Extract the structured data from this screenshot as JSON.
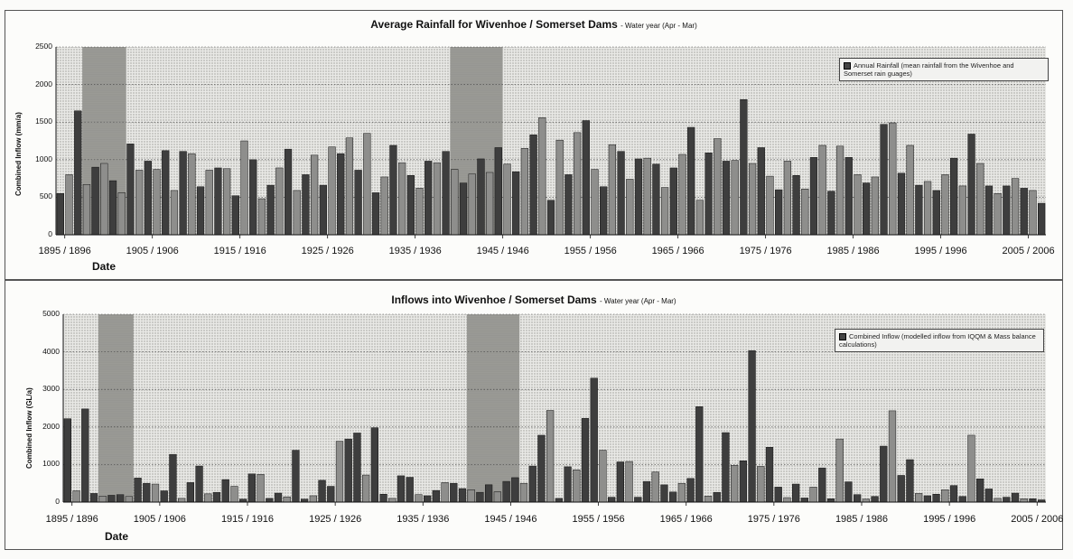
{
  "chart_data": [
    {
      "type": "bar",
      "title": "Average Rainfall for Wivenhoe / Somerset Dams",
      "subtitle": "- Water year (Apr - Mar)",
      "ylabel": "Combined Inflow (mm/a)",
      "xlabel": "Date",
      "ylim": [
        0,
        2500
      ],
      "yticks": [
        "2500",
        "2000",
        "1500",
        "1000",
        "500",
        "0"
      ],
      "xtick_labels": [
        "1895 / 1896",
        "1905 / 1906",
        "1915 / 1916",
        "1925 / 1926",
        "1935 / 1936",
        "1945 / 1946",
        "1955 / 1956",
        "1965 / 1966",
        "1975 / 1976",
        "1985 / 1986",
        "1995 / 1996",
        "2005 / 2006"
      ],
      "legend": "Annual Rainfall (mean rainfall from the Wivenhoe and Somerset rain guages)",
      "legend_position": "top-right",
      "shaded_periods": [
        [
          1897,
          1902
        ],
        [
          1939,
          1945
        ]
      ],
      "start_year": 1894,
      "values": [
        550,
        800,
        1650,
        670,
        900,
        950,
        720,
        560,
        1210,
        860,
        980,
        870,
        1120,
        590,
        1110,
        1080,
        640,
        860,
        890,
        880,
        520,
        1250,
        1000,
        480,
        660,
        890,
        1140,
        590,
        800,
        1060,
        660,
        1170,
        1080,
        1290,
        860,
        1350,
        560,
        770,
        1190,
        960,
        790,
        620,
        980,
        960,
        1110,
        870,
        690,
        810,
        1010,
        830,
        1160,
        940,
        840,
        1150,
        1330,
        1560,
        460,
        1260,
        800,
        1360,
        1520,
        870,
        640,
        1200,
        1110,
        740,
        1010,
        1020,
        940,
        630,
        890,
        1070,
        1430,
        460,
        1090,
        1280,
        980,
        990,
        1800,
        950,
        1160,
        780,
        600,
        980,
        790,
        610,
        1030,
        1190,
        580,
        1180,
        1030,
        800,
        690,
        770,
        1470,
        1490,
        820,
        1190,
        660,
        710,
        590,
        800,
        1020,
        650,
        1340,
        950,
        650,
        550,
        650,
        750,
        620,
        590,
        420
      ],
      "value_colors": [
        "#4a4a4a",
        "#8c8c8c"
      ]
    },
    {
      "type": "bar",
      "title": "Inflows into Wivenhoe / Somerset Dams",
      "subtitle": "- Water year (Apr - Mar)",
      "ylabel": "Combined Inflow (GL/a)",
      "xlabel": "Date",
      "ylim": [
        0,
        5000
      ],
      "yticks": [
        "5000",
        "4000",
        "3000",
        "2000",
        "1000",
        "0"
      ],
      "xtick_labels": [
        "1895 / 1896",
        "1905 / 1906",
        "1915 / 1916",
        "1925 / 1926",
        "1935 / 1936",
        "1945 / 1946",
        "1955 / 1956",
        "1965 / 1966",
        "1975 / 1976",
        "1985 / 1986",
        "1995 / 1996",
        "2005 / 2006"
      ],
      "legend": "Combined Inflow (modelled inflow from IQQM & Mass balance calculations)",
      "legend_position": "top-right",
      "shaded_periods": [
        [
          1898,
          1902
        ],
        [
          1940,
          1946
        ]
      ],
      "start_year": 1894,
      "values": [
        2220,
        300,
        2480,
        230,
        160,
        180,
        200,
        150,
        640,
        500,
        480,
        300,
        1270,
        100,
        520,
        960,
        220,
        260,
        600,
        420,
        80,
        750,
        740,
        100,
        240,
        140,
        1380,
        80,
        170,
        580,
        420,
        1620,
        1680,
        1840,
        720,
        1980,
        210,
        100,
        700,
        660,
        200,
        170,
        310,
        520,
        500,
        360,
        330,
        260,
        460,
        270,
        550,
        650,
        500,
        960,
        1780,
        2440,
        100,
        940,
        860,
        2230,
        3300,
        1380,
        130,
        1070,
        1080,
        130,
        550,
        800,
        460,
        270,
        500,
        630,
        2540,
        160,
        260,
        1850,
        980,
        1100,
        4030,
        950,
        1460,
        400,
        120,
        480,
        110,
        400,
        910,
        90,
        1680,
        540,
        200,
        80,
        150,
        1490,
        2430,
        710,
        1130,
        230,
        170,
        210,
        330,
        440,
        150,
        1780,
        620,
        350,
        100,
        130,
        240,
        90,
        90,
        60
      ]
    }
  ]
}
